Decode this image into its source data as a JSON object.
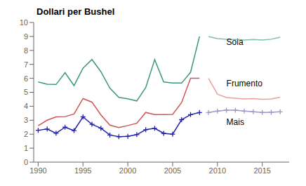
{
  "chart_data": {
    "type": "line",
    "title": "Dollari per Bushel",
    "x": [
      1990,
      1991,
      1992,
      1993,
      1994,
      1995,
      1996,
      1997,
      1998,
      1999,
      2000,
      2001,
      2002,
      2003,
      2004,
      2005,
      2006,
      2007,
      2008,
      2009,
      2010,
      2011,
      2012,
      2013,
      2014,
      2015,
      2016,
      2017
    ],
    "series": [
      {
        "color": "#3d9970",
        "values": [
          5.74,
          5.58,
          5.56,
          6.4,
          5.48,
          6.72,
          7.35,
          6.47,
          5.3,
          4.63,
          4.54,
          4.38,
          5.34,
          7.34,
          5.74,
          5.66,
          5.66,
          6.43,
          9.0,
          null,
          null,
          null,
          null,
          null,
          null,
          null,
          null,
          null
        ]
      },
      {
        "color": "#7fc0a0",
        "values": [
          null,
          null,
          null,
          null,
          null,
          null,
          null,
          null,
          null,
          null,
          null,
          null,
          null,
          null,
          null,
          null,
          null,
          null,
          null,
          9.0,
          8.85,
          8.8,
          8.78,
          8.75,
          8.78,
          8.75,
          8.8,
          8.95
        ]
      },
      {
        "color": "#cc5555",
        "values": [
          2.61,
          3.0,
          3.24,
          3.26,
          3.45,
          4.55,
          4.3,
          3.38,
          2.65,
          2.48,
          2.62,
          2.78,
          3.56,
          3.4,
          3.4,
          3.42,
          4.26,
          6.01,
          6.0,
          null,
          null,
          null,
          null,
          null,
          null,
          null,
          null,
          null
        ]
      },
      {
        "color": "#e8a0a0",
        "values": [
          null,
          null,
          null,
          null,
          null,
          null,
          null,
          null,
          null,
          null,
          null,
          null,
          null,
          null,
          null,
          null,
          null,
          null,
          null,
          6.0,
          4.87,
          4.62,
          4.57,
          4.52,
          4.55,
          4.5,
          4.52,
          4.65
        ]
      },
      {
        "color": "#2222aa",
        "marker": "plus",
        "values": [
          2.28,
          2.37,
          2.07,
          2.5,
          2.26,
          3.24,
          2.71,
          2.43,
          1.94,
          1.82,
          1.85,
          1.97,
          2.32,
          2.42,
          2.06,
          2.0,
          3.04,
          3.4,
          3.55,
          null,
          null,
          null,
          null,
          null,
          null,
          null,
          null,
          null
        ]
      },
      {
        "color": "#9999cc",
        "marker": "plus",
        "values": [
          null,
          null,
          null,
          null,
          null,
          null,
          null,
          null,
          null,
          null,
          null,
          null,
          null,
          null,
          null,
          null,
          null,
          null,
          null,
          3.55,
          3.65,
          3.72,
          3.72,
          3.65,
          3.6,
          3.55,
          3.57,
          3.6
        ]
      }
    ],
    "annotations": [
      {
        "text": "Soia",
        "x": 2011.0,
        "y": 8.6
      },
      {
        "text": "Frumento",
        "x": 2011.0,
        "y": 5.65
      },
      {
        "text": "Mais",
        "x": 2011.0,
        "y": 2.9
      }
    ],
    "xlim": [
      1989.5,
      2018
    ],
    "xticks": [
      1990,
      1995,
      2000,
      2005,
      2010,
      2015
    ],
    "ylim": [
      0,
      10
    ],
    "yticks": [
      0,
      1,
      2,
      3,
      4,
      5,
      6,
      7,
      8,
      9,
      10
    ],
    "grid": false
  }
}
